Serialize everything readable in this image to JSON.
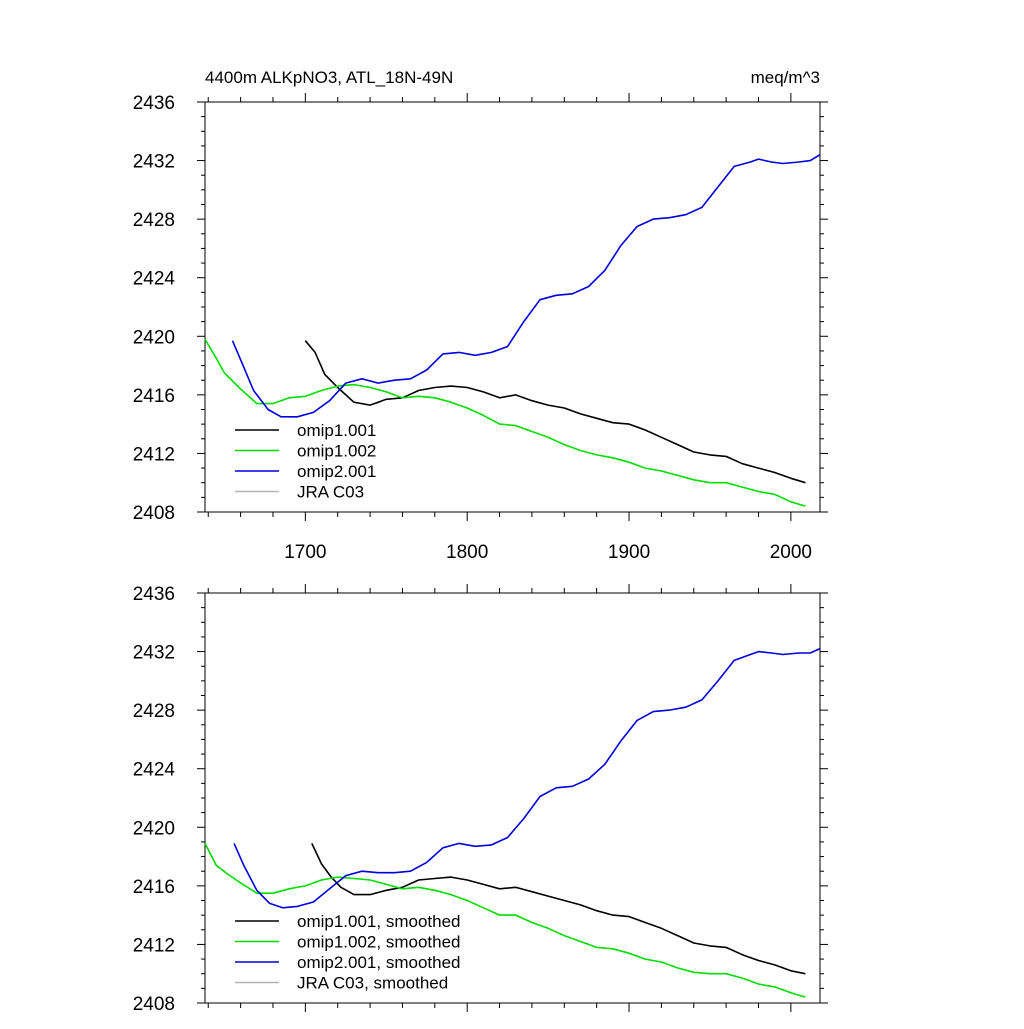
{
  "title_left": "4400m ALKpNO3, ATL_18N-49N",
  "title_right": "meq/m^3",
  "colors": {
    "omip1_001": "#000000",
    "omip1_002": "#00dd00",
    "omip2_001": "#0000dd",
    "jra_c03": "#b4b4b4"
  },
  "chart_data": [
    {
      "type": "line",
      "title": "4400m ALKpNO3, ATL_18N-49N",
      "units": "meq/m^3",
      "xlim": [
        1638,
        2018
      ],
      "ylim": [
        2408,
        2436
      ],
      "xticks": [
        1700,
        1800,
        1900,
        2000
      ],
      "yticks": [
        2408,
        2412,
        2416,
        2420,
        2424,
        2428,
        2432,
        2436
      ],
      "legend_position": "bottom-left",
      "series": [
        {
          "name": "omip1.001",
          "color": "#000000",
          "x": [
            1700,
            1706,
            1712,
            1720,
            1730,
            1740,
            1750,
            1760,
            1770,
            1780,
            1790,
            1800,
            1810,
            1820,
            1830,
            1840,
            1850,
            1860,
            1870,
            1880,
            1890,
            1900,
            1910,
            1920,
            1930,
            1940,
            1950,
            1960,
            1970,
            1980,
            1990,
            2000,
            2009
          ],
          "y": [
            2419.7,
            2418.9,
            2417.4,
            2416.5,
            2415.5,
            2415.3,
            2415.7,
            2415.8,
            2416.3,
            2416.5,
            2416.6,
            2416.5,
            2416.2,
            2415.8,
            2416.0,
            2415.6,
            2415.3,
            2415.1,
            2414.7,
            2414.4,
            2414.1,
            2414.0,
            2413.6,
            2413.1,
            2412.6,
            2412.1,
            2411.9,
            2411.8,
            2411.3,
            2411.0,
            2410.7,
            2410.3,
            2410.0
          ]
        },
        {
          "name": "omip1.002",
          "color": "#00dd00",
          "x": [
            1638,
            1645,
            1650,
            1660,
            1670,
            1680,
            1690,
            1700,
            1710,
            1720,
            1730,
            1740,
            1750,
            1760,
            1770,
            1780,
            1790,
            1800,
            1810,
            1820,
            1830,
            1840,
            1850,
            1860,
            1870,
            1880,
            1890,
            1900,
            1910,
            1920,
            1930,
            1940,
            1950,
            1960,
            1970,
            1980,
            1990,
            2000,
            2009
          ],
          "y": [
            2419.8,
            2418.5,
            2417.5,
            2416.4,
            2415.4,
            2415.4,
            2415.8,
            2415.9,
            2416.3,
            2416.6,
            2416.7,
            2416.5,
            2416.2,
            2415.8,
            2415.9,
            2415.8,
            2415.5,
            2415.1,
            2414.6,
            2414.0,
            2413.9,
            2413.5,
            2413.1,
            2412.6,
            2412.2,
            2411.9,
            2411.7,
            2411.4,
            2411.0,
            2410.8,
            2410.5,
            2410.2,
            2410.0,
            2410.0,
            2409.7,
            2409.4,
            2409.2,
            2408.7,
            2408.4
          ]
        },
        {
          "name": "omip2.001",
          "color": "#0000dd",
          "x": [
            1655,
            1660,
            1668,
            1677,
            1685,
            1695,
            1705,
            1715,
            1725,
            1735,
            1745,
            1755,
            1765,
            1775,
            1785,
            1795,
            1805,
            1815,
            1825,
            1835,
            1845,
            1855,
            1865,
            1875,
            1885,
            1895,
            1905,
            1915,
            1925,
            1935,
            1945,
            1955,
            1965,
            1975,
            1980,
            1988,
            1995,
            2005,
            2012,
            2018
          ],
          "y": [
            2419.7,
            2418.4,
            2416.3,
            2415.0,
            2414.5,
            2414.5,
            2414.8,
            2415.6,
            2416.8,
            2417.1,
            2416.8,
            2417.0,
            2417.1,
            2417.7,
            2418.8,
            2418.9,
            2418.7,
            2418.9,
            2419.3,
            2421.0,
            2422.5,
            2422.8,
            2422.9,
            2423.4,
            2424.5,
            2426.2,
            2427.5,
            2428.0,
            2428.1,
            2428.3,
            2428.8,
            2430.2,
            2431.6,
            2431.9,
            2432.1,
            2431.9,
            2431.8,
            2431.9,
            2432.0,
            2432.4
          ]
        },
        {
          "name": "JRA C03",
          "color": "#b4b4b4",
          "x": [],
          "y": []
        }
      ]
    },
    {
      "type": "line",
      "title": "",
      "xlim": [
        1638,
        2018
      ],
      "ylim": [
        2408,
        2436
      ],
      "xticks": [
        1700,
        1800,
        1900,
        2000
      ],
      "yticks": [
        2408,
        2412,
        2416,
        2420,
        2424,
        2428,
        2432,
        2436
      ],
      "legend_position": "bottom-left",
      "series": [
        {
          "name": "omip1.001, smoothed",
          "color": "#000000",
          "x": [
            1704,
            1710,
            1716,
            1722,
            1730,
            1740,
            1750,
            1760,
            1770,
            1780,
            1790,
            1800,
            1810,
            1820,
            1830,
            1840,
            1850,
            1860,
            1870,
            1880,
            1890,
            1900,
            1910,
            1920,
            1930,
            1940,
            1950,
            1960,
            1970,
            1980,
            1990,
            2000,
            2009
          ],
          "y": [
            2418.9,
            2417.5,
            2416.6,
            2415.9,
            2415.4,
            2415.4,
            2415.7,
            2415.9,
            2416.4,
            2416.5,
            2416.6,
            2416.4,
            2416.1,
            2415.8,
            2415.9,
            2415.6,
            2415.3,
            2415.0,
            2414.7,
            2414.3,
            2414.0,
            2413.9,
            2413.5,
            2413.1,
            2412.6,
            2412.1,
            2411.9,
            2411.8,
            2411.3,
            2410.9,
            2410.6,
            2410.2,
            2410.0
          ]
        },
        {
          "name": "omip1.002, smoothed",
          "color": "#00dd00",
          "x": [
            1638,
            1645,
            1652,
            1660,
            1670,
            1680,
            1690,
            1700,
            1710,
            1720,
            1730,
            1740,
            1750,
            1760,
            1770,
            1780,
            1790,
            1800,
            1810,
            1820,
            1830,
            1840,
            1850,
            1860,
            1870,
            1880,
            1890,
            1900,
            1910,
            1920,
            1930,
            1940,
            1950,
            1960,
            1970,
            1980,
            1990,
            2000,
            2009
          ],
          "y": [
            2418.9,
            2417.4,
            2416.8,
            2416.2,
            2415.5,
            2415.5,
            2415.8,
            2416.0,
            2416.4,
            2416.6,
            2416.5,
            2416.4,
            2416.1,
            2415.8,
            2415.9,
            2415.7,
            2415.4,
            2415.0,
            2414.5,
            2414.0,
            2414.0,
            2413.5,
            2413.1,
            2412.6,
            2412.2,
            2411.8,
            2411.7,
            2411.4,
            2411.0,
            2410.8,
            2410.4,
            2410.1,
            2410.0,
            2410.0,
            2409.7,
            2409.3,
            2409.1,
            2408.7,
            2408.4
          ]
        },
        {
          "name": "omip2.001, smoothed",
          "color": "#0000dd",
          "x": [
            1656,
            1662,
            1670,
            1678,
            1686,
            1695,
            1705,
            1715,
            1725,
            1735,
            1745,
            1755,
            1765,
            1775,
            1785,
            1795,
            1805,
            1815,
            1825,
            1835,
            1845,
            1855,
            1865,
            1875,
            1885,
            1895,
            1905,
            1915,
            1925,
            1935,
            1945,
            1955,
            1965,
            1975,
            1980,
            1988,
            1995,
            2005,
            2012,
            2018
          ],
          "y": [
            2418.9,
            2417.4,
            2415.7,
            2414.8,
            2414.5,
            2414.6,
            2414.9,
            2415.8,
            2416.7,
            2417.0,
            2416.9,
            2416.9,
            2417.0,
            2417.6,
            2418.6,
            2418.9,
            2418.7,
            2418.8,
            2419.3,
            2420.6,
            2422.1,
            2422.7,
            2422.8,
            2423.3,
            2424.3,
            2425.9,
            2427.3,
            2427.9,
            2428.0,
            2428.2,
            2428.7,
            2430.0,
            2431.4,
            2431.8,
            2432.0,
            2431.9,
            2431.8,
            2431.9,
            2431.9,
            2432.2
          ]
        },
        {
          "name": "JRA C03, smoothed",
          "color": "#b4b4b4",
          "x": [],
          "y": []
        }
      ]
    }
  ]
}
